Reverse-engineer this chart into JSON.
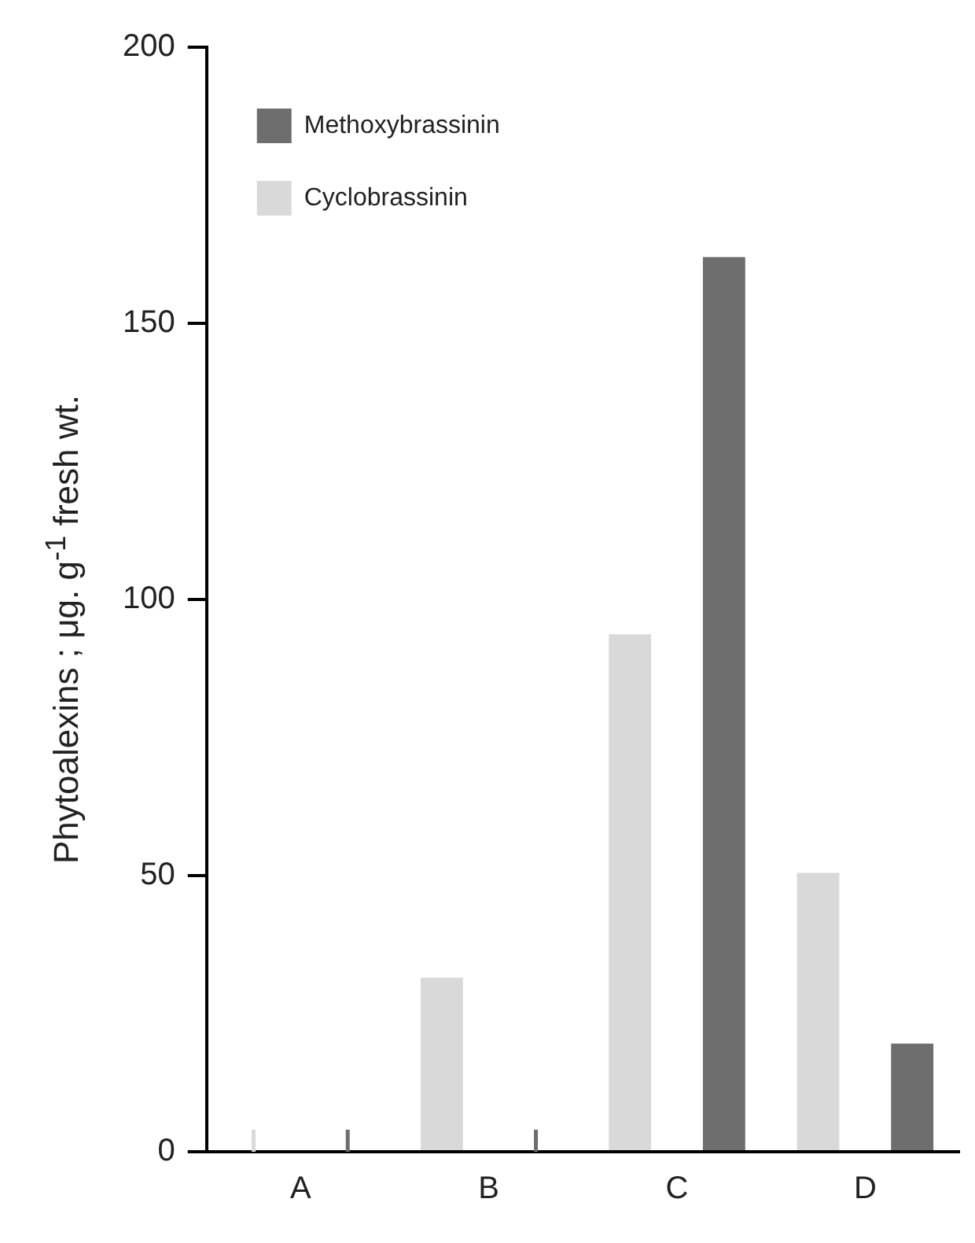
{
  "chart_data": {
    "type": "bar",
    "ylabel": "Phytoalexins ; μg. g$^{-1}$ fresh wt.",
    "categories": [
      "A",
      "B",
      "C",
      "D"
    ],
    "series": [
      {
        "name": "Cyclobrassinin",
        "color": "#d9d9d9",
        "values": [
          0,
          31.5,
          93.7,
          50.5
        ]
      },
      {
        "name": "Methoxybrassinin",
        "color": "#6e6e6e",
        "values": [
          0,
          0,
          162,
          19.6
        ]
      }
    ],
    "ylim": [
      0,
      200
    ],
    "yticks": [
      0,
      50,
      100,
      150,
      200
    ],
    "grid": false,
    "legend": "top left"
  }
}
